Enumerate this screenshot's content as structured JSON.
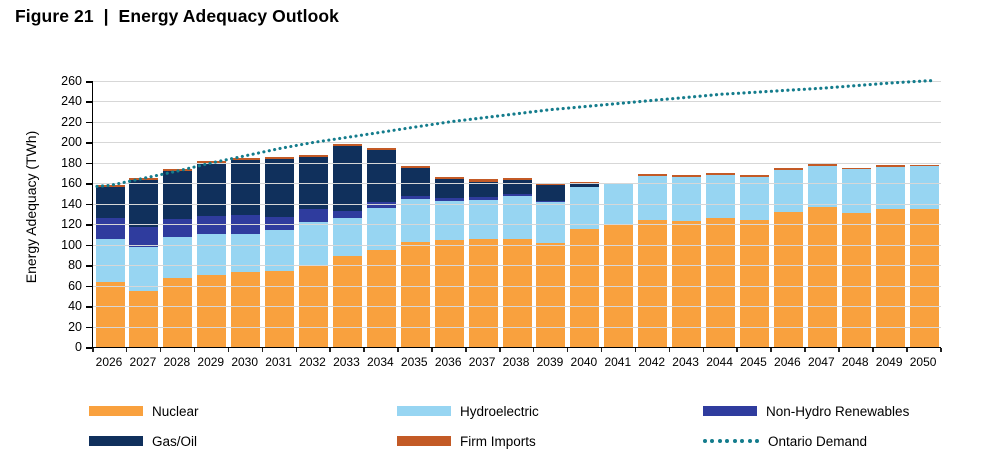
{
  "title": "Figure 21  |  Energy Adequacy Outlook",
  "chart_data": {
    "type": "bar",
    "stacked": true,
    "title": "Figure 21 | Energy Adequacy Outlook",
    "xlabel": "",
    "ylabel": "Energy Adequacy (TWh)",
    "ylim": [
      0,
      260
    ],
    "ytick_step": 20,
    "grid": "horizontal-only",
    "legend_position": "bottom",
    "categories": [
      "2026",
      "2027",
      "2028",
      "2029",
      "2030",
      "2031",
      "2032",
      "2033",
      "2034",
      "2035",
      "2036",
      "2037",
      "2038",
      "2039",
      "2040",
      "2041",
      "2042",
      "2043",
      "2044",
      "2045",
      "2046",
      "2047",
      "2048",
      "2049",
      "2050"
    ],
    "series": [
      {
        "name": "Nuclear",
        "color": "#F9A13E",
        "values": [
          64,
          55,
          67,
          70,
          73,
          74,
          80,
          89,
          95,
          103,
          105,
          106,
          106,
          102,
          115,
          119,
          124,
          123,
          126,
          124,
          132,
          137,
          131,
          135,
          135
        ]
      },
      {
        "name": "Hydroelectric",
        "color": "#97D5F2",
        "values": [
          42,
          43,
          41,
          40,
          37,
          40,
          42,
          37,
          41,
          42,
          38,
          38,
          42,
          40,
          41,
          40,
          43,
          43,
          42,
          42,
          41,
          40,
          43,
          41,
          42
        ]
      },
      {
        "name": "Non-Hydro Renewables",
        "color": "#2F3C9E",
        "values": [
          20,
          19,
          17,
          18,
          19,
          13,
          13,
          7,
          6,
          3,
          3,
          3,
          2,
          1,
          0,
          0,
          0,
          0,
          0,
          0,
          0,
          0,
          0,
          0,
          0
        ]
      },
      {
        "name": "Gas/Oil",
        "color": "#10305C",
        "values": [
          30,
          46,
          47,
          52,
          54,
          57,
          51,
          63,
          51,
          27,
          18,
          14,
          13,
          15,
          4,
          0,
          0,
          0,
          0,
          0,
          0,
          0,
          0,
          0,
          0
        ]
      },
      {
        "name": "Firm Imports",
        "color": "#C35A26",
        "values": [
          2,
          2,
          2,
          2,
          2,
          2,
          2,
          2,
          2,
          2,
          2,
          3,
          2.5,
          2,
          1.5,
          1.5,
          2,
          2,
          2,
          2,
          2,
          2,
          1,
          1.5,
          1
        ]
      }
    ],
    "line_series": [
      {
        "name": "Ontario Demand",
        "color": "#147C8C",
        "style": "dotted",
        "values": [
          158,
          165,
          172,
          180,
          187,
          194,
          200,
          205,
          210,
          215,
          220,
          224,
          228,
          232,
          235,
          238,
          241,
          244,
          247,
          249,
          251,
          253,
          255.5,
          258,
          260
        ]
      }
    ],
    "legend": [
      {
        "label": "Nuclear",
        "swatch": "rect",
        "color": "#F9A13E"
      },
      {
        "label": "Hydroelectric",
        "swatch": "rect",
        "color": "#97D5F2"
      },
      {
        "label": "Non-Hydro Renewables",
        "swatch": "rect",
        "color": "#2F3C9E"
      },
      {
        "label": "Gas/Oil",
        "swatch": "rect",
        "color": "#10305C"
      },
      {
        "label": "Firm Imports",
        "swatch": "rect",
        "color": "#C35A26"
      },
      {
        "label": "Ontario Demand",
        "swatch": "dots",
        "color": "#147C8C"
      }
    ]
  },
  "colors": {
    "gridline": "#d7d7d7",
    "axis": "#000000",
    "background": "#ffffff"
  }
}
